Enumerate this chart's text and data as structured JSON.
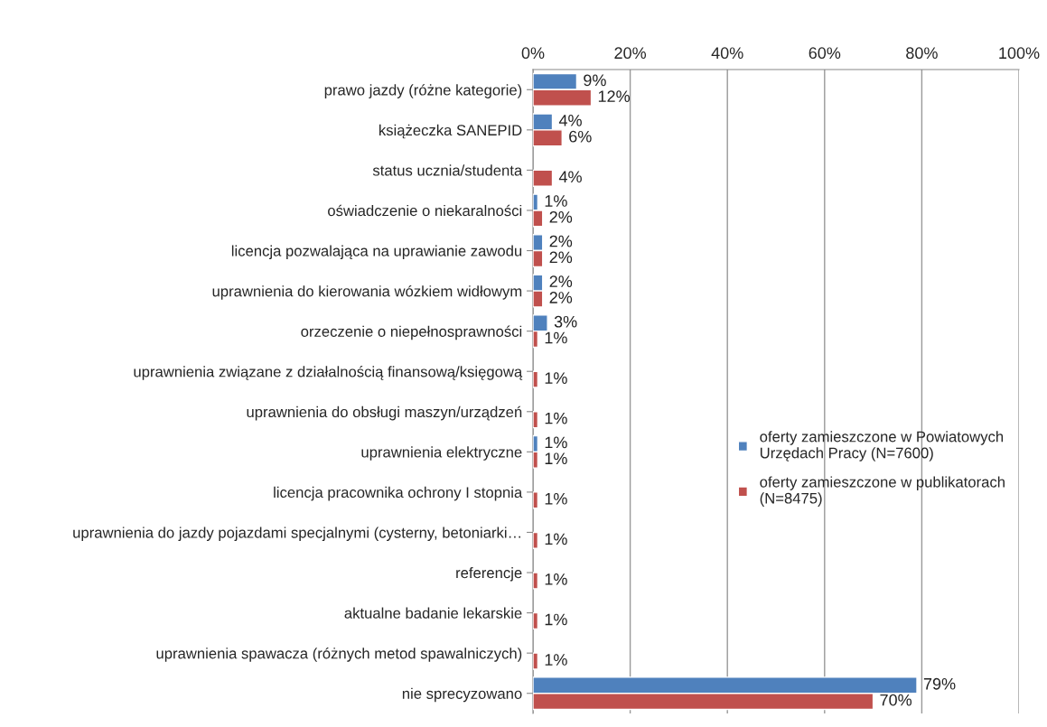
{
  "chart_data": {
    "type": "bar",
    "orientation": "horizontal",
    "categories": [
      "prawo jazdy (różne kategorie)",
      "książeczka SANEPID",
      "status ucznia/studenta",
      "oświadczenie o niekaralności",
      "licencja pozwalająca na uprawianie zawodu",
      "uprawnienia do kierowania wózkiem widłowym",
      "orzeczenie o niepełnosprawności",
      "uprawnienia związane z działalnością finansową/księgową",
      "uprawnienia do obsługi maszyn/urządzeń",
      "uprawnienia elektryczne",
      "licencja pracownika ochrony I stopnia",
      "uprawnienia do jazdy pojazdami specjalnymi (cysterny, betoniarki…",
      "referencje",
      "aktualne badanie lekarskie",
      "uprawnienia spawacza (różnych metod spawalniczych)",
      "nie sprecyzowano"
    ],
    "series": [
      {
        "name": "oferty zamieszczone w Powiatowych\nUrzędach Pracy (N=7600)",
        "color": "#4f81bd",
        "values": [
          9,
          4,
          null,
          1,
          2,
          2,
          3,
          null,
          null,
          1,
          null,
          null,
          null,
          null,
          null,
          79
        ],
        "value_labels": [
          "9%",
          "4%",
          null,
          "1%",
          "2%",
          "2%",
          "3%",
          null,
          null,
          "1%",
          null,
          null,
          null,
          null,
          null,
          "79%"
        ]
      },
      {
        "name": "oferty zamieszczone w publikatorach\n(N=8475)",
        "color": "#c0504d",
        "values": [
          12,
          6,
          4,
          2,
          2,
          2,
          1,
          1,
          1,
          1,
          1,
          1,
          1,
          1,
          1,
          70
        ],
        "value_labels": [
          "12%",
          "6%",
          "4%",
          "2%",
          "2%",
          "2%",
          "1%",
          "1%",
          "1%",
          "1%",
          "1%",
          "1%",
          "1%",
          "1%",
          "1%",
          "70%"
        ]
      }
    ],
    "xlim": [
      0,
      100
    ],
    "xticks": [
      {
        "value": 0,
        "label": "0%"
      },
      {
        "value": 20,
        "label": "20%"
      },
      {
        "value": 40,
        "label": "40%"
      },
      {
        "value": 60,
        "label": "60%"
      },
      {
        "value": 80,
        "label": "80%"
      },
      {
        "value": 100,
        "label": "100%"
      }
    ],
    "grid": "x",
    "legend": "right"
  }
}
